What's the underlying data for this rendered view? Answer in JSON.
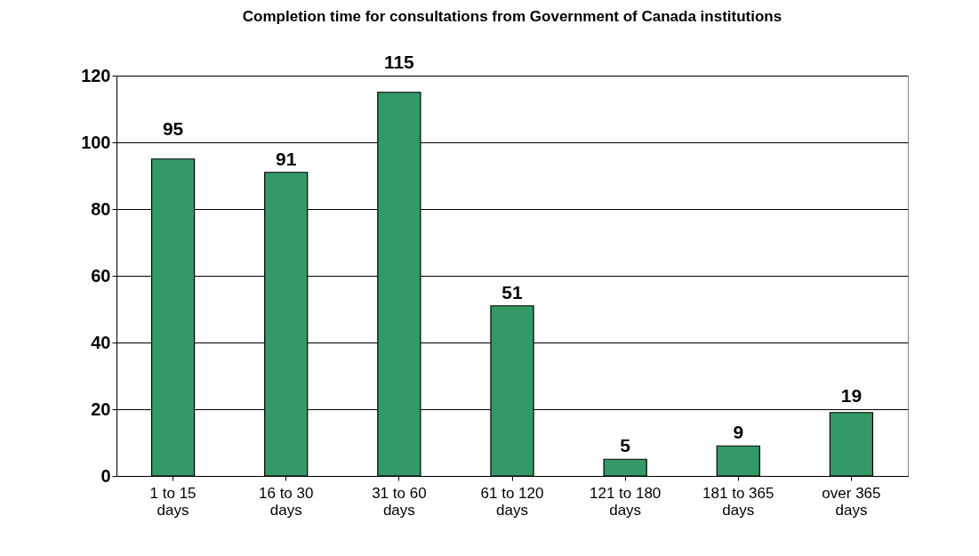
{
  "chart_data": {
    "type": "bar",
    "title": "Completion time for consultations from Government of Canada institutions",
    "categories": [
      "1 to 15 days",
      "16 to 30 days",
      "31 to 60 days",
      "61 to 120 days",
      "121 to 180 days",
      "181 to 365 days",
      "over 365 days"
    ],
    "values": [
      95,
      91,
      115,
      51,
      5,
      9,
      19
    ],
    "color": "#339966",
    "ylim": [
      0,
      120
    ],
    "yticks": [
      0,
      20,
      40,
      60,
      80,
      100,
      120
    ],
    "grid": "y",
    "data_labels": true
  }
}
